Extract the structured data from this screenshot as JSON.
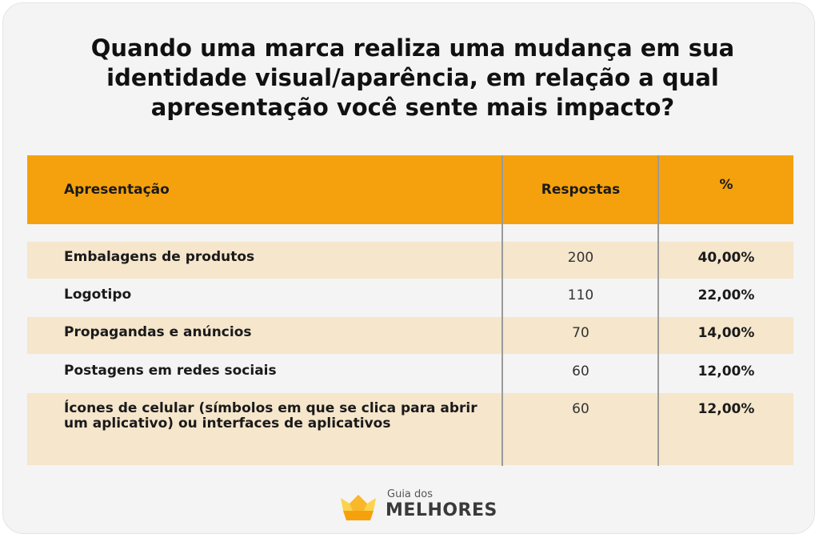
{
  "title": "Quando uma marca realiza uma mudança em sua identidade visual/aparência, em relação a qual apresentação você sente mais impacto?",
  "colors": {
    "header": "#f5a10e",
    "shaded_row": "#f5e6cc",
    "background": "#f4f4f4",
    "logo_primary": "#f5a10e",
    "logo_secondary": "#fcd34d"
  },
  "chart_data": {
    "type": "table",
    "title": "Quando uma marca realiza uma mudança em sua identidade visual/aparência, em relação a qual apresentação você sente mais impacto?",
    "columns": [
      "Apresentação",
      "Respostas",
      "%"
    ],
    "rows": [
      {
        "label": "Embalagens de produtos",
        "count": "200",
        "pct": "40,00%"
      },
      {
        "label": "Logotipo",
        "count": "110",
        "pct": "22,00%"
      },
      {
        "label": "Propagandas e anúncios",
        "count": "70",
        "pct": "14,00%"
      },
      {
        "label": "Postagens em redes sociais",
        "count": "60",
        "pct": "12,00%"
      },
      {
        "label": "Ícones de celular (símbolos em que se clica para abrir um aplicativo) ou interfaces de aplicativos",
        "count": "60",
        "pct": "12,00%"
      }
    ]
  },
  "logo": {
    "small_text": "Guia dos",
    "big_text": "MELHORES",
    "icon": "crown-icon"
  }
}
